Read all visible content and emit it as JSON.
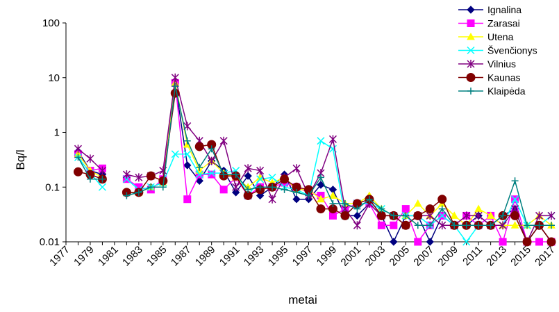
{
  "chart_data": {
    "type": "line",
    "xlabel": "metai",
    "ylabel": "Bq/l",
    "y_scale": "log",
    "ylim": [
      0.01,
      100
    ],
    "y_ticks": [
      "0.01",
      "0.1",
      "1",
      "10",
      "100"
    ],
    "x_tick_labels": [
      "1977",
      "1979",
      "1981",
      "1983",
      "1985",
      "1987",
      "1989",
      "1991",
      "1993",
      "1995",
      "1997",
      "1999",
      "2001",
      "2003",
      "2005",
      "2007",
      "2009",
      "2011",
      "2013",
      "2015",
      "2017"
    ],
    "legend_position": "top-right",
    "grid": false,
    "series": [
      {
        "name": "Ignalina",
        "color": "#000080",
        "marker": "diamond",
        "points": [
          [
            1978,
            0.45
          ],
          [
            1979,
            0.2
          ],
          [
            1980,
            0.17
          ],
          [
            1982,
            0.08
          ],
          [
            1983,
            0.08
          ],
          [
            1984,
            0.1
          ],
          [
            1985,
            0.12
          ],
          [
            1986,
            8
          ],
          [
            1987,
            0.25
          ],
          [
            1988,
            0.13
          ],
          [
            1989,
            0.3
          ],
          [
            1990,
            0.2
          ],
          [
            1991,
            0.08
          ],
          [
            1992,
            0.16
          ],
          [
            1993,
            0.07
          ],
          [
            1994,
            0.1
          ],
          [
            1995,
            0.17
          ],
          [
            1996,
            0.06
          ],
          [
            1997,
            0.06
          ],
          [
            1998,
            0.11
          ],
          [
            1999,
            0.09
          ],
          [
            2000,
            0.03
          ],
          [
            2001,
            0.03
          ],
          [
            2002,
            0.05
          ],
          [
            2003,
            0.03
          ],
          [
            2004,
            0.01
          ],
          [
            2005,
            0.03
          ],
          [
            2006,
            0.03
          ],
          [
            2007,
            0.01
          ],
          [
            2008,
            0.03
          ],
          [
            2009,
            0.02
          ],
          [
            2010,
            0.02
          ],
          [
            2011,
            0.03
          ],
          [
            2012,
            0.02
          ],
          [
            2013,
            0.03
          ],
          [
            2014,
            0.04
          ],
          [
            2015,
            0.01
          ],
          [
            2016,
            0.02
          ],
          [
            2017,
            0.01
          ]
        ]
      },
      {
        "name": "Zarasai",
        "color": "#FF00FF",
        "marker": "square",
        "points": [
          [
            1978,
            0.4
          ],
          [
            1979,
            0.2
          ],
          [
            1980,
            0.22
          ],
          [
            1982,
            0.14
          ],
          [
            1983,
            0.1
          ],
          [
            1984,
            0.09
          ],
          [
            1985,
            0.14
          ],
          [
            1986,
            8
          ],
          [
            1987,
            0.06
          ],
          [
            1988,
            0.17
          ],
          [
            1989,
            0.17
          ],
          [
            1990,
            0.09
          ],
          [
            1991,
            0.15
          ],
          [
            1992,
            0.07
          ],
          [
            1993,
            0.1
          ],
          [
            1994,
            0.1
          ],
          [
            1995,
            0.12
          ],
          [
            1996,
            0.1
          ],
          [
            1997,
            0.08
          ],
          [
            1998,
            0.07
          ],
          [
            1999,
            0.03
          ],
          [
            2000,
            0.04
          ],
          [
            2001,
            0.05
          ],
          [
            2002,
            0.05
          ],
          [
            2003,
            0.02
          ],
          [
            2004,
            0.02
          ],
          [
            2005,
            0.04
          ],
          [
            2006,
            0.01
          ],
          [
            2007,
            0.02
          ],
          [
            2008,
            0.03
          ],
          [
            2009,
            0.02
          ],
          [
            2010,
            0.03
          ],
          [
            2011,
            0.02
          ],
          [
            2012,
            0.03
          ],
          [
            2013,
            0.01
          ],
          [
            2014,
            0.06
          ],
          [
            2015,
            0.01
          ],
          [
            2016,
            0.01
          ],
          [
            2017,
            0.01
          ]
        ]
      },
      {
        "name": "Utena",
        "color": "#FFFF00",
        "marker": "triangle",
        "points": [
          [
            1978,
            0.4
          ],
          [
            1979,
            0.2
          ],
          [
            1980,
            0.15
          ],
          [
            1982,
            0.08
          ],
          [
            1983,
            0.08
          ],
          [
            1984,
            0.1
          ],
          [
            1985,
            0.12
          ],
          [
            1986,
            8
          ],
          [
            1987,
            0.6
          ],
          [
            1988,
            0.2
          ],
          [
            1989,
            0.3
          ],
          [
            1990,
            0.18
          ],
          [
            1991,
            0.15
          ],
          [
            1992,
            0.1
          ],
          [
            1993,
            0.15
          ],
          [
            1994,
            0.12
          ],
          [
            1995,
            0.15
          ],
          [
            1996,
            0.09
          ],
          [
            1997,
            0.09
          ],
          [
            1998,
            0.06
          ],
          [
            1999,
            0.07
          ],
          [
            2000,
            0.05
          ],
          [
            2001,
            0.05
          ],
          [
            2002,
            0.07
          ],
          [
            2003,
            0.04
          ],
          [
            2004,
            0.03
          ],
          [
            2005,
            0.03
          ],
          [
            2006,
            0.05
          ],
          [
            2007,
            0.03
          ],
          [
            2008,
            0.05
          ],
          [
            2009,
            0.03
          ],
          [
            2010,
            0.02
          ],
          [
            2011,
            0.04
          ],
          [
            2012,
            0.03
          ],
          [
            2013,
            0.02
          ],
          [
            2014,
            0.02
          ],
          [
            2015,
            0.02
          ],
          [
            2016,
            0.03
          ],
          [
            2017,
            0.02
          ]
        ]
      },
      {
        "name": "Švenčionys",
        "color": "#00FFFF",
        "marker": "x",
        "points": [
          [
            1978,
            0.35
          ],
          [
            1979,
            0.18
          ],
          [
            1980,
            0.1
          ],
          [
            1982,
            0.14
          ],
          [
            1983,
            0.09
          ],
          [
            1984,
            0.1
          ],
          [
            1985,
            0.12
          ],
          [
            1986,
            0.4
          ],
          [
            1987,
            0.4
          ],
          [
            1988,
            0.17
          ],
          [
            1989,
            0.18
          ],
          [
            1990,
            0.18
          ],
          [
            1991,
            0.2
          ],
          [
            1992,
            0.07
          ],
          [
            1993,
            0.14
          ],
          [
            1994,
            0.15
          ],
          [
            1995,
            0.1
          ],
          [
            1996,
            0.09
          ],
          [
            1997,
            0.07
          ],
          [
            1998,
            0.7
          ],
          [
            1999,
            0.5
          ],
          [
            2000,
            0.03
          ],
          [
            2001,
            0.05
          ],
          [
            2002,
            0.05
          ],
          [
            2003,
            0.04
          ],
          [
            2004,
            0.03
          ],
          [
            2005,
            0.03
          ],
          [
            2006,
            0.03
          ],
          [
            2007,
            0.02
          ],
          [
            2008,
            0.03
          ],
          [
            2009,
            0.02
          ],
          [
            2010,
            0.01
          ],
          [
            2011,
            0.02
          ],
          [
            2012,
            0.02
          ],
          [
            2013,
            0.02
          ],
          [
            2014,
            0.06
          ],
          [
            2015,
            0.02
          ],
          [
            2016,
            0.02
          ],
          [
            2017,
            0.03
          ]
        ]
      },
      {
        "name": "Vilnius",
        "color": "#800080",
        "marker": "star",
        "points": [
          [
            1978,
            0.5
          ],
          [
            1979,
            0.33
          ],
          [
            1980,
            0.2
          ],
          [
            1982,
            0.17
          ],
          [
            1983,
            0.15
          ],
          [
            1984,
            0.16
          ],
          [
            1985,
            0.2
          ],
          [
            1986,
            10
          ],
          [
            1987,
            1.3
          ],
          [
            1988,
            0.7
          ],
          [
            1989,
            0.3
          ],
          [
            1990,
            0.7
          ],
          [
            1991,
            0.1
          ],
          [
            1992,
            0.22
          ],
          [
            1993,
            0.2
          ],
          [
            1994,
            0.06
          ],
          [
            1995,
            0.15
          ],
          [
            1996,
            0.22
          ],
          [
            1997,
            0.07
          ],
          [
            1998,
            0.18
          ],
          [
            1999,
            0.75
          ],
          [
            2000,
            0.04
          ],
          [
            2001,
            0.02
          ],
          [
            2002,
            0.05
          ],
          [
            2003,
            0.03
          ],
          [
            2004,
            0.03
          ],
          [
            2005,
            0.02
          ],
          [
            2006,
            0.03
          ],
          [
            2007,
            0.03
          ],
          [
            2008,
            0.02
          ],
          [
            2009,
            0.02
          ],
          [
            2010,
            0.03
          ],
          [
            2011,
            0.03
          ],
          [
            2012,
            0.02
          ],
          [
            2013,
            0.02
          ],
          [
            2014,
            0.04
          ],
          [
            2015,
            0.01
          ],
          [
            2016,
            0.03
          ],
          [
            2017,
            0.03
          ]
        ]
      },
      {
        "name": "Kaunas",
        "color": "#800000",
        "marker": "circle",
        "points": [
          [
            1978,
            0.19
          ],
          [
            1979,
            0.17
          ],
          [
            1980,
            0.14
          ],
          [
            1982,
            0.08
          ],
          [
            1983,
            0.08
          ],
          [
            1984,
            0.16
          ],
          [
            1985,
            0.13
          ],
          [
            1986,
            5.2
          ],
          [
            1988,
            0.55
          ],
          [
            1989,
            0.6
          ],
          [
            1990,
            0.16
          ],
          [
            1991,
            0.16
          ],
          [
            1992,
            0.07
          ],
          [
            1993,
            0.09
          ],
          [
            1994,
            0.1
          ],
          [
            1995,
            0.14
          ],
          [
            1996,
            0.1
          ],
          [
            1997,
            0.09
          ],
          [
            1998,
            0.04
          ],
          [
            1999,
            0.04
          ],
          [
            2000,
            0.03
          ],
          [
            2001,
            0.05
          ],
          [
            2002,
            0.06
          ],
          [
            2003,
            0.03
          ],
          [
            2004,
            0.03
          ],
          [
            2005,
            0.02
          ],
          [
            2006,
            0.03
          ],
          [
            2007,
            0.04
          ],
          [
            2008,
            0.06
          ],
          [
            2009,
            0.02
          ],
          [
            2010,
            0.02
          ],
          [
            2011,
            0.02
          ],
          [
            2012,
            0.02
          ],
          [
            2013,
            0.03
          ],
          [
            2014,
            0.03
          ],
          [
            2015,
            0.01
          ],
          [
            2016,
            0.02
          ],
          [
            2017,
            0.01
          ]
        ]
      },
      {
        "name": "Klaipėda",
        "color": "#008080",
        "marker": "plus",
        "points": [
          [
            1978,
            0.35
          ],
          [
            1979,
            0.14
          ],
          [
            1980,
            0.14
          ],
          [
            1982,
            0.07
          ],
          [
            1983,
            0.08
          ],
          [
            1984,
            0.1
          ],
          [
            1985,
            0.1
          ],
          [
            1986,
            7
          ],
          [
            1987,
            0.7
          ],
          [
            1988,
            0.23
          ],
          [
            1989,
            0.5
          ],
          [
            1990,
            0.17
          ],
          [
            1991,
            0.17
          ],
          [
            1992,
            0.09
          ],
          [
            1993,
            0.1
          ],
          [
            1994,
            0.1
          ],
          [
            1995,
            0.09
          ],
          [
            1996,
            0.08
          ],
          [
            1997,
            0.07
          ],
          [
            1998,
            0.15
          ],
          [
            1999,
            0.05
          ],
          [
            2000,
            0.05
          ],
          [
            2001,
            0.04
          ],
          [
            2002,
            0.06
          ],
          [
            2003,
            0.04
          ],
          [
            2004,
            0.03
          ],
          [
            2005,
            0.03
          ],
          [
            2006,
            0.02
          ],
          [
            2007,
            0.02
          ],
          [
            2008,
            0.04
          ],
          [
            2009,
            0.02
          ],
          [
            2010,
            0.02
          ],
          [
            2011,
            0.02
          ],
          [
            2012,
            0.02
          ],
          [
            2013,
            0.03
          ],
          [
            2014,
            0.13
          ],
          [
            2015,
            0.02
          ],
          [
            2016,
            0.02
          ],
          [
            2017,
            0.02
          ]
        ]
      }
    ]
  }
}
